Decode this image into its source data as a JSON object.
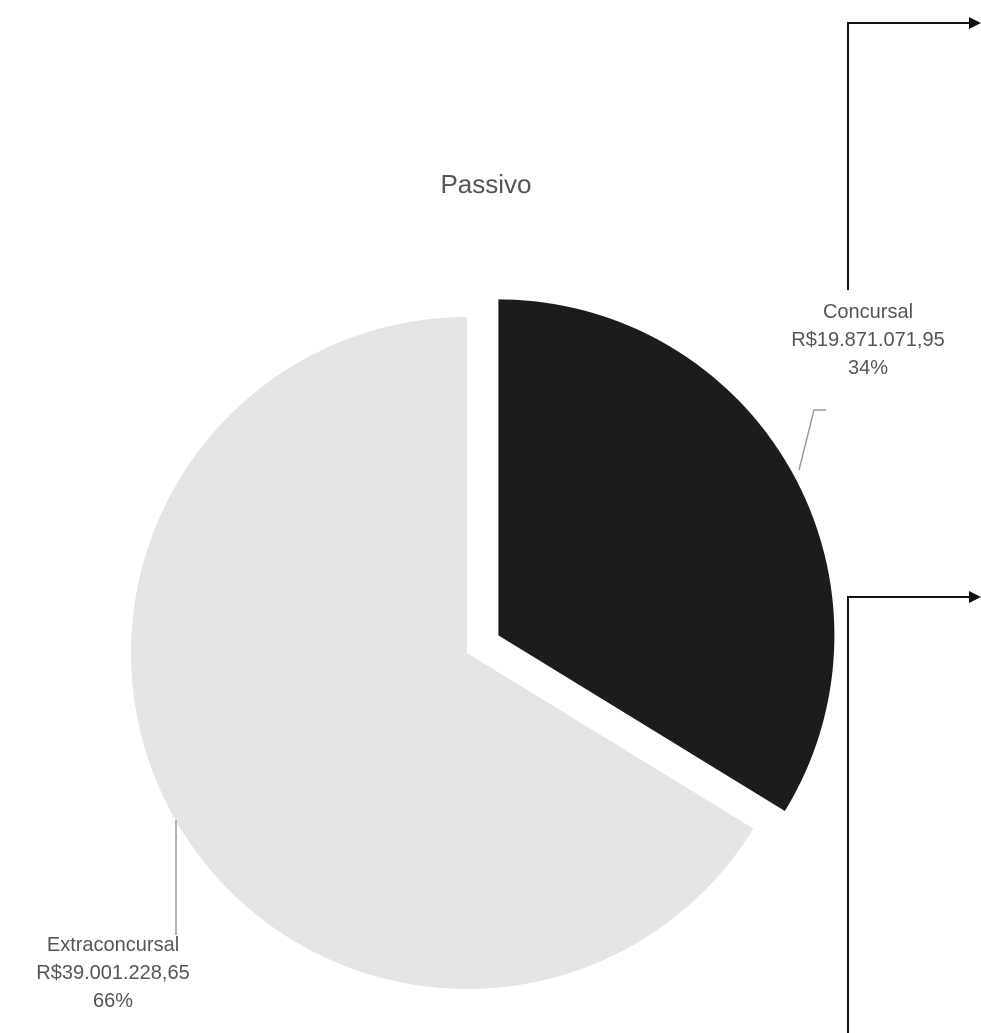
{
  "chart_data": {
    "type": "pie",
    "title": "Passivo",
    "slices": [
      {
        "name": "Concursal",
        "value": 19871071.95,
        "value_label": "R$19.871.071,95",
        "percent_label": "34%",
        "color": "#1c1c1c",
        "exploded": true
      },
      {
        "name": "Extraconcursal",
        "value": 39001228.65,
        "value_label": "R$39.001.228,65",
        "percent_label": "66%",
        "color": "#e5e5e5",
        "exploded": false
      }
    ],
    "legend": "none"
  },
  "colors": {
    "background": "#ffffff",
    "text": "#555555",
    "leader_line": "#999999",
    "arrow": "#111111"
  }
}
